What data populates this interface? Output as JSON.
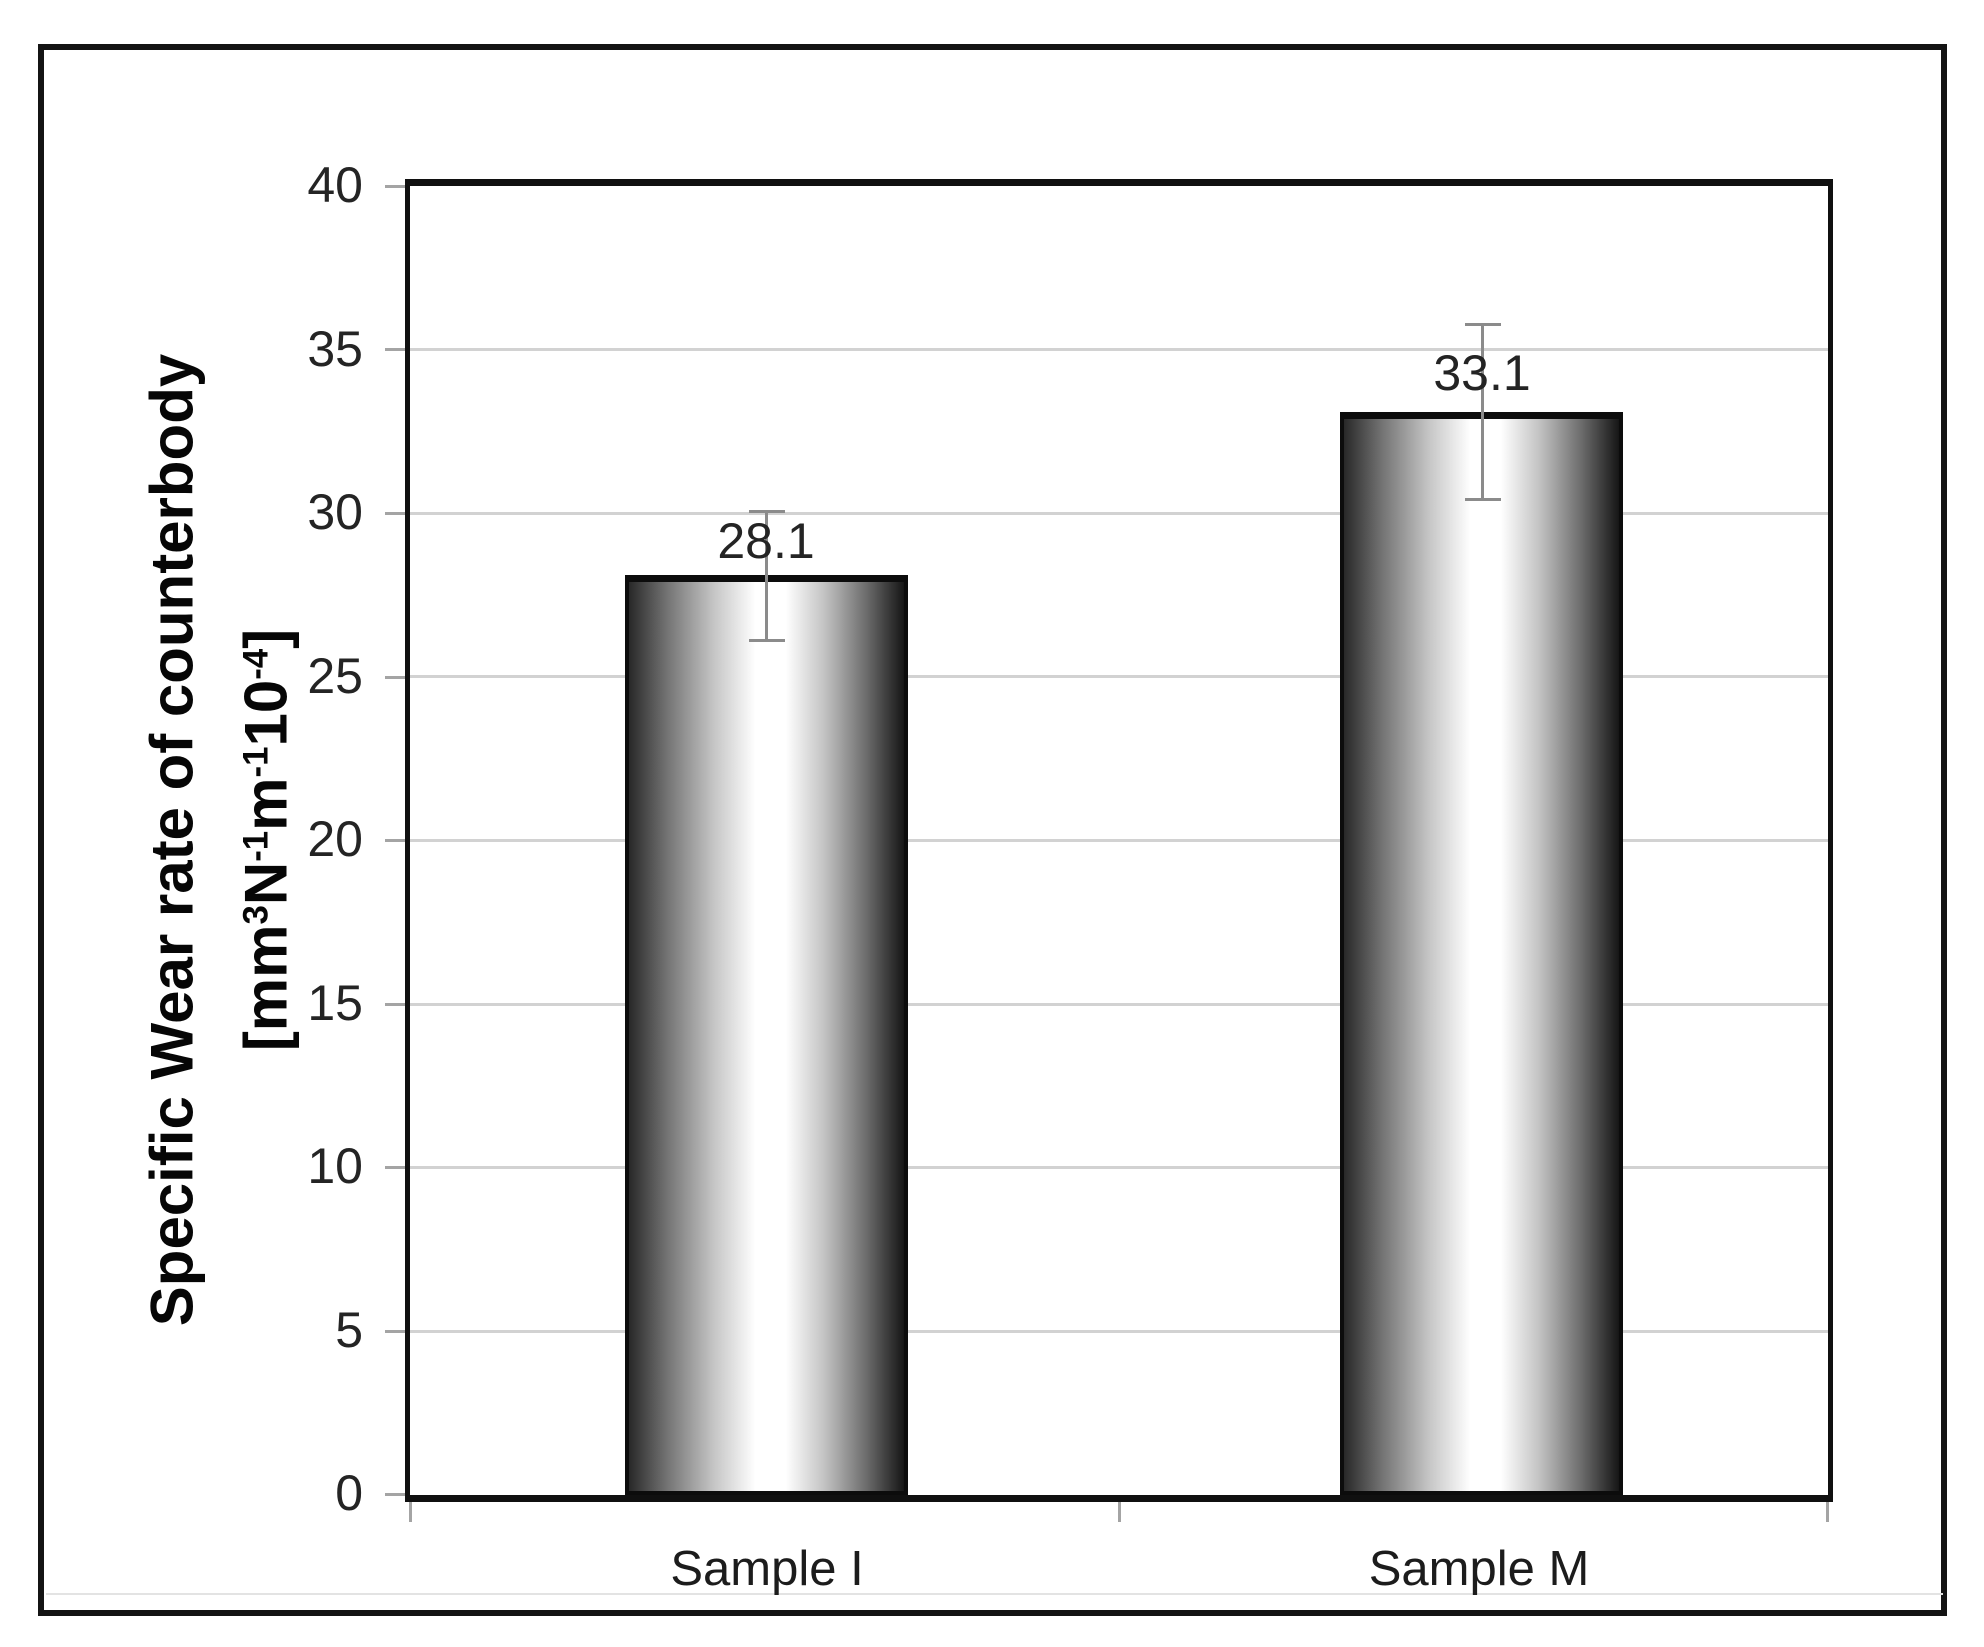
{
  "figure": {
    "kind": "scientific bar chart figure with outer frame",
    "background": "#ffffff"
  },
  "chart_data": {
    "type": "bar",
    "categories": [
      "Sample I",
      "Sample M"
    ],
    "values": [
      28.1,
      33.1
    ],
    "data_labels": [
      "28.1",
      "33.1"
    ],
    "error_bars": [
      {
        "category": "Sample I",
        "plus": 2.0,
        "minus": 2.0
      },
      {
        "category": "Sample M",
        "plus": 2.7,
        "minus": 2.7
      }
    ],
    "title": "",
    "xlabel": "",
    "ylabel": "Specific Wear rate of counterbody [mm³N⁻¹m⁻¹10⁻⁴]",
    "ylim": [
      0,
      40
    ],
    "ytick_step": 5,
    "yticks": [
      40,
      35,
      30,
      25,
      20,
      15,
      10,
      5,
      0
    ],
    "grid": "horizontal gridlines every 5 units",
    "legend_position": "none",
    "bar_style": "grayscale cylinder gradient, black outline"
  },
  "yaxis": {
    "title_line1": "Specific Wear rate of counterbody",
    "unit_segments": [
      {
        "text": "[mm",
        "sup": false
      },
      {
        "text": "3",
        "sup": true
      },
      {
        "text": "N",
        "sup": false
      },
      {
        "text": "-1",
        "sup": true
      },
      {
        "text": "m",
        "sup": false
      },
      {
        "text": "-1",
        "sup": true
      },
      {
        "text": "10",
        "sup": false
      },
      {
        "text": "-4",
        "sup": true
      },
      {
        "text": "]",
        "sup": false
      }
    ],
    "ticks": [
      "40",
      "35",
      "30",
      "25",
      "20",
      "15",
      "10",
      "5",
      "0"
    ]
  },
  "bars": [
    {
      "label": "Sample I",
      "value": 28.1,
      "display": "28.1"
    },
    {
      "label": "Sample M",
      "value": 33.1,
      "display": "33.1"
    }
  ],
  "colors": {
    "frame_border": "#141414",
    "plot_border": "#101010",
    "gridline": "#d2d2d2",
    "tick": "#a4a4a4",
    "error_bar": "#8b8b8b",
    "text": "#242424",
    "bar_gradient_edge": "#282828",
    "bar_gradient_center": "#ffffff"
  }
}
